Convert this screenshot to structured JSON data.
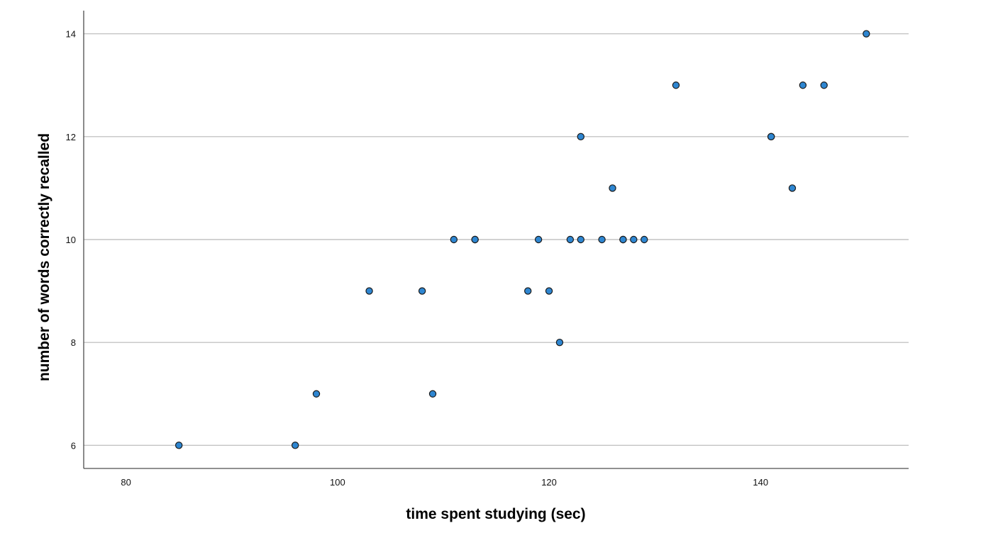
{
  "chart_data": {
    "type": "scatter",
    "title": "",
    "xlabel": "time spent studying (sec)",
    "ylabel": "number of words correctly recalled",
    "xlim": [
      76,
      154
    ],
    "ylim": [
      5.55,
      14.45
    ],
    "x_ticks": [
      80,
      100,
      120,
      140
    ],
    "y_ticks": [
      6,
      8,
      10,
      12,
      14
    ],
    "grid": "horizontal",
    "colors": {
      "marker_fill": "#2E86D1",
      "marker_edge": "#1A1A1A",
      "gridline": "#B8B8B8",
      "axis": "#4D4D4D"
    },
    "points": [
      {
        "x": 85,
        "y": 6
      },
      {
        "x": 96,
        "y": 6
      },
      {
        "x": 98,
        "y": 7
      },
      {
        "x": 103,
        "y": 9
      },
      {
        "x": 108,
        "y": 9
      },
      {
        "x": 109,
        "y": 7
      },
      {
        "x": 111,
        "y": 10
      },
      {
        "x": 113,
        "y": 10
      },
      {
        "x": 113,
        "y": 10
      },
      {
        "x": 118,
        "y": 9
      },
      {
        "x": 119,
        "y": 10
      },
      {
        "x": 120,
        "y": 9
      },
      {
        "x": 121,
        "y": 8
      },
      {
        "x": 122,
        "y": 10
      },
      {
        "x": 123,
        "y": 10
      },
      {
        "x": 123,
        "y": 12
      },
      {
        "x": 125,
        "y": 10
      },
      {
        "x": 126,
        "y": 11
      },
      {
        "x": 127,
        "y": 10
      },
      {
        "x": 127,
        "y": 10
      },
      {
        "x": 128,
        "y": 10
      },
      {
        "x": 129,
        "y": 10
      },
      {
        "x": 132,
        "y": 13
      },
      {
        "x": 141,
        "y": 12
      },
      {
        "x": 141,
        "y": 12
      },
      {
        "x": 143,
        "y": 11
      },
      {
        "x": 144,
        "y": 13
      },
      {
        "x": 146,
        "y": 13
      },
      {
        "x": 150,
        "y": 14
      }
    ]
  }
}
